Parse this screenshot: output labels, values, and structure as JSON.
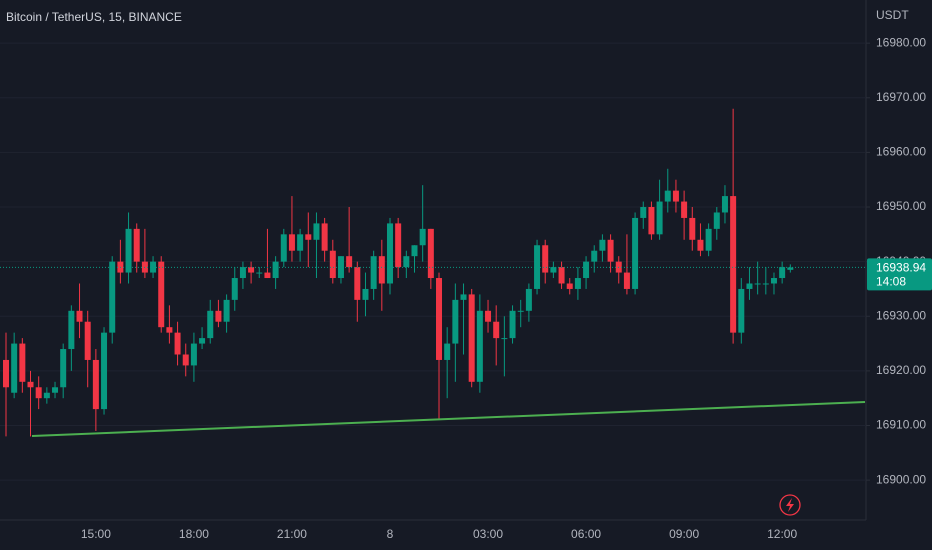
{
  "chart_data": {
    "type": "candlestick",
    "title": "Bitcoin / TetherUS, 15, BINANCE",
    "currency": "USDT",
    "categories": [
      null,
      null,
      null,
      null,
      null,
      null,
      null,
      null,
      null,
      null,
      null,
      "15:00",
      null,
      null,
      null,
      null,
      null,
      null,
      null,
      null,
      null,
      null,
      null,
      "18:00",
      null,
      null,
      null,
      null,
      null,
      null,
      null,
      null,
      null,
      null,
      null,
      "21:00",
      null,
      null,
      null,
      null,
      null,
      null,
      null,
      null,
      null,
      null,
      null,
      "8",
      null,
      null,
      null,
      null,
      null,
      null,
      null,
      null,
      null,
      null,
      null,
      "03:00",
      null,
      null,
      null,
      null,
      null,
      null,
      null,
      null,
      null,
      null,
      null,
      "06:00",
      null,
      null,
      null,
      null,
      null,
      null,
      null,
      null,
      null,
      null,
      null,
      "09:00",
      null,
      null,
      null,
      null,
      null,
      null,
      null,
      null,
      null,
      null,
      null,
      "12:00",
      null
    ],
    "open": [
      16922,
      16916,
      16925,
      16918,
      16917,
      16915,
      16916,
      16917,
      16924,
      16931,
      16929,
      16922,
      16913,
      16927,
      16940,
      16938,
      16946,
      16940,
      16938,
      16940,
      16928,
      16927,
      16923,
      16921,
      16925,
      16926,
      16931,
      16929,
      16933,
      16937,
      16939,
      16938,
      16938,
      16937,
      16940,
      16945,
      16942,
      16945,
      16944,
      16947,
      16942,
      16937,
      16941,
      16939,
      16933,
      16935,
      16941,
      16936,
      16947,
      16939,
      16941,
      16943,
      16946,
      16937,
      16922,
      16925,
      16933,
      16934,
      16918,
      16931,
      16929,
      16926,
      16926,
      16931,
      16931,
      16935,
      16943,
      16938,
      16939,
      16936,
      16935,
      16937,
      16940,
      16942,
      16944,
      16940,
      16938,
      16935,
      16948,
      16950,
      16945,
      16951,
      16953,
      16951,
      16948,
      16944,
      16942,
      16946,
      16949,
      16952,
      16927,
      16935,
      16936,
      16936,
      16936,
      16937,
      16938.5
    ],
    "high": [
      16927,
      16927,
      16926,
      16920,
      16919,
      16917,
      16918,
      16925,
      16932,
      16936,
      16931,
      16924,
      16928,
      16941,
      16944,
      16949,
      16947,
      16946,
      16941,
      16941,
      16932,
      16929,
      16925,
      16927,
      16928,
      16933,
      16933,
      16934,
      16939,
      16940,
      16940,
      16939,
      16946,
      16941,
      16946,
      16952,
      16946,
      16949,
      16949,
      16948,
      16944,
      16941,
      16950,
      16940,
      16938,
      16942,
      16944,
      16948,
      16948,
      16942,
      16943,
      16954,
      16946,
      16938,
      16928,
      16936,
      16936,
      16935,
      16934,
      16933,
      16932,
      16930,
      16932,
      16933,
      16936,
      16944,
      16944,
      16940,
      16940,
      16937,
      16939,
      16941,
      16943,
      16945,
      16945,
      16941,
      16945,
      16949,
      16951,
      16951,
      16955,
      16957,
      16955,
      16953,
      16950,
      16947,
      16947,
      16950,
      16954,
      16968,
      16937,
      16939,
      16940,
      16939,
      16938,
      16940,
      16939.5
    ],
    "low": [
      16908,
      16915,
      16916,
      16908,
      16913,
      16914,
      16915,
      16915,
      16920,
      16926,
      16917,
      16909,
      16912,
      16925,
      16936,
      16936,
      16938,
      16937,
      16937,
      16927,
      16925,
      16921,
      16919,
      16918,
      16924,
      16925,
      16928,
      16927,
      16931,
      16935,
      16936,
      16937,
      16937,
      16935,
      16939,
      16940,
      16940,
      16939,
      16937,
      16940,
      16936,
      16936,
      16938,
      16929,
      16930,
      16933,
      16931,
      16934,
      16937,
      16937,
      16938,
      16940,
      16935,
      16911,
      16915,
      16918,
      16923,
      16917,
      16916,
      16927,
      16921,
      16919,
      16925,
      16928,
      16929,
      16934,
      16936,
      16937,
      16935,
      16934,
      16933,
      16935,
      16938,
      16940,
      16938,
      16936,
      16934,
      16934,
      16946,
      16944,
      16944,
      16949,
      16949,
      16944,
      16942,
      16941,
      16941,
      16944,
      16947,
      16925,
      16925,
      16933,
      16934,
      16934,
      16934,
      16936,
      16938
    ],
    "close": [
      16917,
      16925,
      16918,
      16917,
      16915,
      16916,
      16917,
      16924,
      16931,
      16929,
      16922,
      16913,
      16927,
      16940,
      16938,
      16946,
      16940,
      16938,
      16940,
      16928,
      16927,
      16923,
      16921,
      16925,
      16926,
      16931,
      16929,
      16933,
      16937,
      16939,
      16938,
      16938,
      16937,
      16940,
      16945,
      16942,
      16945,
      16944,
      16947,
      16942,
      16937,
      16941,
      16939,
      16933,
      16935,
      16941,
      16936,
      16947,
      16939,
      16941,
      16943,
      16946,
      16937,
      16922,
      16925,
      16933,
      16934,
      16918,
      16931,
      16929,
      16926,
      16926,
      16931,
      16931,
      16935,
      16943,
      16938,
      16939,
      16936,
      16935,
      16937,
      16940,
      16942,
      16944,
      16940,
      16938,
      16935,
      16948,
      16950,
      16945,
      16951,
      16953,
      16951,
      16948,
      16944,
      16942,
      16946,
      16949,
      16952,
      16927,
      16935,
      16936,
      16936,
      16936,
      16937,
      16939,
      16938.94
    ],
    "up_color": "#089981",
    "down_color": "#f23645",
    "ylim": [
      16892.7,
      16987.9
    ],
    "yticks": [
      {
        "value": 16900,
        "label": "16900.00"
      },
      {
        "value": 16910,
        "label": "16910.00"
      },
      {
        "value": 16920,
        "label": "16920.00"
      },
      {
        "value": 16930,
        "label": "16930.00"
      },
      {
        "value": 16940,
        "label": "16940.00"
      },
      {
        "value": 16950,
        "label": "16950.00"
      },
      {
        "value": 16960,
        "label": "16960.00"
      },
      {
        "value": 16970,
        "label": "16970.00"
      },
      {
        "value": 16980,
        "label": "16980.00"
      }
    ],
    "grid": true,
    "last_price": 16938.94,
    "countdown": "14:08"
  }
}
